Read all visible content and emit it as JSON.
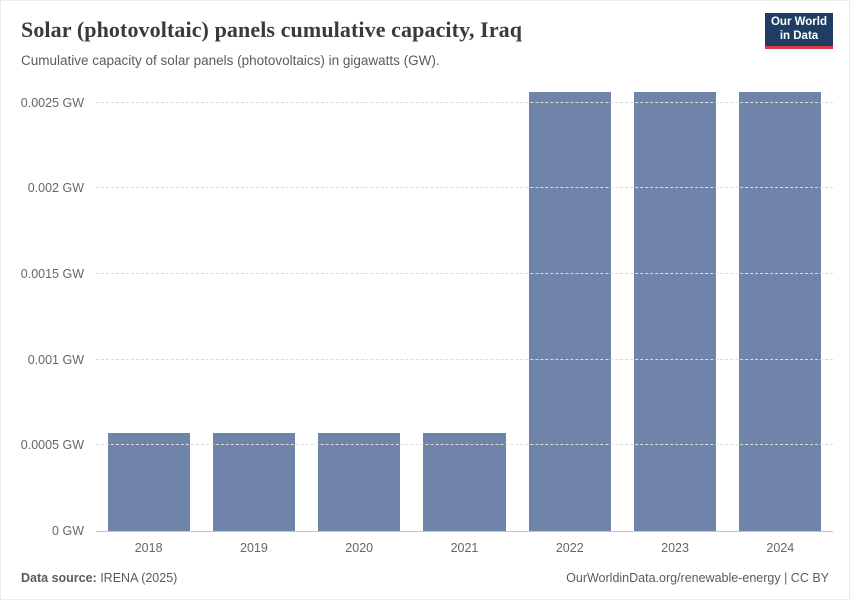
{
  "header": {
    "title": "Solar (photovoltaic) panels cumulative capacity, Iraq",
    "subtitle": "Cumulative capacity of solar panels (photovoltaics) in gigawatts (GW).",
    "logo": {
      "line1": "Our World",
      "line2": "in Data",
      "bg_color": "#1d3d63",
      "accent_color": "#d93a4a"
    }
  },
  "chart_data": {
    "type": "bar",
    "title": "Solar (photovoltaic) panels cumulative capacity, Iraq",
    "unit": "GW",
    "categories": [
      "2018",
      "2019",
      "2020",
      "2021",
      "2022",
      "2023",
      "2024"
    ],
    "values": [
      0.00057,
      0.00057,
      0.00057,
      0.00057,
      0.00256,
      0.00256,
      0.00256
    ],
    "bar_color": "#7083a8",
    "ylim": [
      0,
      0.00258
    ],
    "yticks": [
      {
        "value": 0,
        "label": "0 GW"
      },
      {
        "value": 0.0005,
        "label": "0.0005 GW"
      },
      {
        "value": 0.001,
        "label": "0.001 GW"
      },
      {
        "value": 0.0015,
        "label": "0.0015 GW"
      },
      {
        "value": 0.002,
        "label": "0.002 GW"
      },
      {
        "value": 0.0025,
        "label": "0.0025 GW"
      }
    ],
    "grid": true,
    "legend": false,
    "xlabel": "",
    "ylabel": ""
  },
  "footer": {
    "source_label": "Data source:",
    "source_value": " IRENA (2025)",
    "link": "OurWorldinData.org/renewable-energy | CC BY"
  }
}
